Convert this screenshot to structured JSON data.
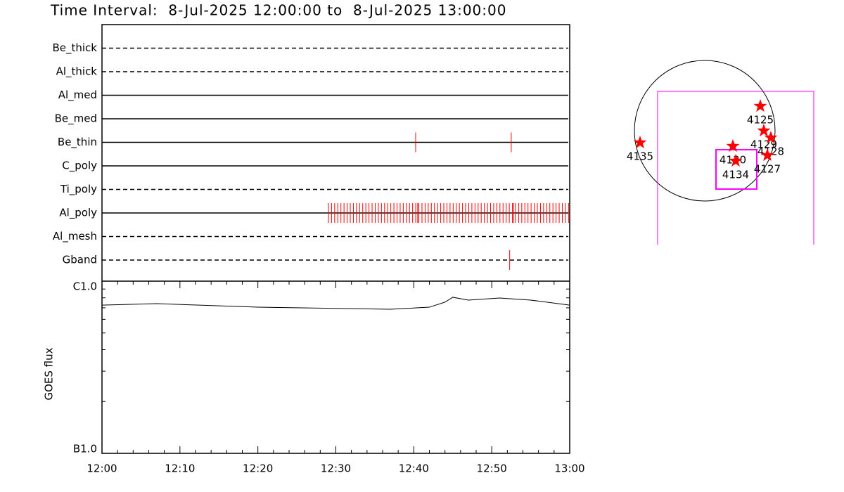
{
  "chart_data": [
    {
      "type": "timeline",
      "title": "Time Interval:  8-Jul-2025 12:00:00 to  8-Jul-2025 13:00:00",
      "xlim": [
        0,
        60
      ],
      "color": "#ff0000",
      "rows": [
        {
          "name": "Be_thick",
          "style": "dashed",
          "times": []
        },
        {
          "name": "Al_thick",
          "style": "dashed",
          "times": []
        },
        {
          "name": "Al_med",
          "style": "solid",
          "times": []
        },
        {
          "name": "Be_med",
          "style": "solid",
          "times": []
        },
        {
          "name": "Be_thin",
          "style": "solid",
          "times": [
            40.24,
            52.5
          ]
        },
        {
          "name": "C_poly",
          "style": "solid",
          "times": []
        },
        {
          "name": "Ti_poly",
          "style": "dashed",
          "times": []
        },
        {
          "name": "Al_poly",
          "style": "solid",
          "times": [
            29.05,
            29.45,
            29.85,
            30.25,
            30.65,
            31.05,
            31.45,
            31.85,
            32.25,
            32.65,
            33.05,
            33.45,
            33.85,
            34.25,
            34.65,
            35.05,
            35.45,
            35.85,
            36.25,
            36.65,
            37.05,
            37.45,
            37.85,
            38.25,
            38.65,
            39.05,
            39.45,
            39.85,
            40.25,
            40.65,
            41.05,
            41.45,
            41.85,
            42.25,
            42.65,
            43.05,
            43.45,
            43.85,
            44.25,
            44.65,
            45.05,
            45.45,
            45.85,
            46.25,
            46.65,
            47.05,
            47.45,
            47.85,
            48.25,
            48.65,
            49.05,
            49.45,
            49.85,
            50.25,
            50.65,
            51.05,
            51.45,
            51.85,
            52.25,
            52.65,
            53.05,
            53.45,
            53.85,
            54.25,
            54.65,
            55.05,
            55.45,
            55.85,
            56.25,
            56.65,
            57.05,
            57.45,
            57.85,
            58.25,
            58.65,
            59.05,
            59.45,
            59.85,
            40.5,
            52.8
          ]
        },
        {
          "name": "Al_mesh",
          "style": "dashed",
          "times": []
        },
        {
          "name": "Gband",
          "style": "dashed",
          "times": [
            52.3
          ]
        }
      ]
    },
    {
      "type": "line",
      "y_label": "GOES flux",
      "log_scale": true,
      "xlim": [
        0,
        60
      ],
      "xticks": [
        {
          "value": 0,
          "label": "12:00"
        },
        {
          "value": 10,
          "label": "12:10"
        },
        {
          "value": 20,
          "label": "12:20"
        },
        {
          "value": 30,
          "label": "12:30"
        },
        {
          "value": 40,
          "label": "12:40"
        },
        {
          "value": 50,
          "label": "12:50"
        },
        {
          "value": 60,
          "label": "13:00"
        }
      ],
      "xticks_minor": [
        2,
        4,
        6,
        8,
        12,
        14,
        16,
        18,
        22,
        24,
        26,
        28,
        32,
        34,
        36,
        38,
        42,
        44,
        46,
        48,
        52,
        54,
        56,
        58
      ],
      "ylim": [
        1e-06,
        1e-05
      ],
      "yticks": [
        {
          "value": 1e-06,
          "label": "B1.0"
        },
        {
          "value": 1e-05,
          "label": "C1.0"
        }
      ],
      "yticks_minor": [
        2e-06,
        3e-06,
        4e-06,
        5e-06,
        6e-06,
        7e-06,
        8e-06,
        9e-06
      ],
      "color": "#000000",
      "x": [
        0,
        7,
        20,
        37,
        42,
        44,
        45,
        47,
        51,
        55,
        60
      ],
      "values": [
        7.26e-06,
        7.4e-06,
        7.06e-06,
        6.87e-06,
        7.06e-06,
        7.55e-06,
        8.06e-06,
        7.76e-06,
        7.98e-06,
        7.76e-06,
        7.26e-06
      ]
    },
    {
      "type": "map",
      "star_color": "#ff0000",
      "box_color": "#ff00ff",
      "regions": [
        {
          "name": "4135",
          "x": -0.92,
          "y": -0.17
        },
        {
          "name": "4125",
          "x": 0.79,
          "y": 0.35
        },
        {
          "name": "4129",
          "x": 0.84,
          "y": 0.0
        },
        {
          "name": "4128",
          "x": 0.94,
          "y": -0.1
        },
        {
          "name": "4127",
          "x": 0.89,
          "y": -0.35
        },
        {
          "name": "4130",
          "x": 0.4,
          "y": -0.22
        },
        {
          "name": "4134",
          "x": 0.44,
          "y": -0.43
        }
      ],
      "boxes": [
        {
          "x": [
            -0.67,
            1.55
          ],
          "y": [
            0.56,
            -1.62
          ],
          "open_bottom": true
        },
        {
          "x": [
            0.16,
            0.74
          ],
          "y": [
            -0.27,
            -0.83
          ],
          "open_bottom": false
        }
      ]
    }
  ]
}
